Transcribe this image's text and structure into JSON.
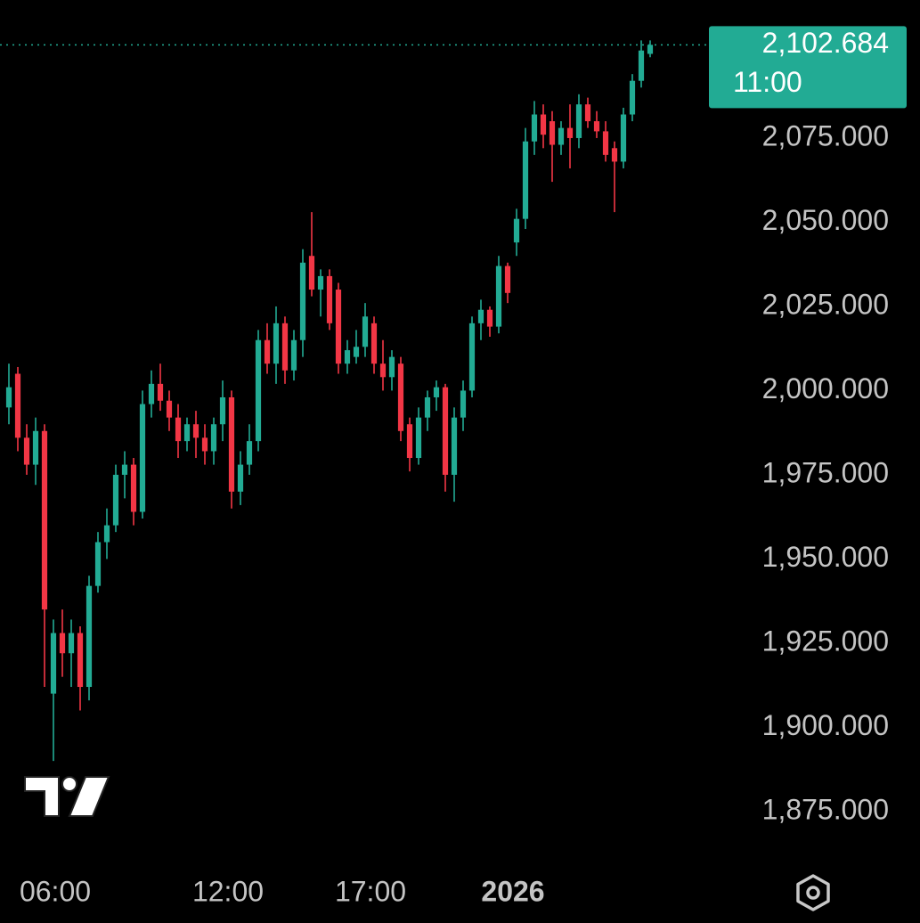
{
  "chart_data": {
    "type": "candlestick",
    "x": [
      1,
      2,
      3,
      4,
      5,
      6,
      7,
      8,
      9,
      10,
      11,
      12,
      13,
      14,
      15,
      16,
      17,
      18,
      19,
      20,
      21,
      22,
      23,
      24,
      25,
      26,
      27,
      28,
      29,
      30,
      31,
      32,
      33,
      34,
      35,
      36,
      37,
      38,
      39,
      40,
      41,
      42,
      43,
      44,
      45,
      46,
      47,
      48,
      49,
      50,
      51,
      52,
      53,
      54,
      55,
      56,
      57,
      58,
      59,
      60,
      61,
      62,
      63,
      64,
      65,
      66,
      67,
      68,
      69,
      70,
      71,
      72,
      73
    ],
    "open": [
      1995,
      2005,
      1986,
      1978,
      1988,
      1910,
      1928,
      1922,
      1928,
      1912,
      1942,
      1955,
      1960,
      1975,
      1978,
      1964,
      1996,
      2002,
      1997,
      1992,
      1985,
      1990,
      1986,
      1982,
      1990,
      1998,
      1970,
      1978,
      1985,
      2015,
      2008,
      2020,
      2006,
      2015,
      2040,
      2030,
      2034,
      2030,
      2008,
      2010,
      2013,
      2020,
      2008,
      2004,
      2008,
      1990,
      1980,
      1992,
      1998,
      2001,
      1975,
      1992,
      2000,
      2020,
      2024,
      2019,
      2037,
      2044,
      2051,
      2074,
      2082,
      2080,
      2073,
      2078,
      2075,
      2085,
      2080,
      2077,
      2072,
      2068,
      2082,
      2092,
      2100
    ],
    "high": [
      2008,
      2007,
      1990,
      1992,
      1990,
      1932,
      1935,
      1932,
      1930,
      1945,
      1958,
      1965,
      1978,
      1982,
      1980,
      2000,
      2006,
      2008,
      2000,
      1996,
      1992,
      1994,
      1990,
      1992,
      2003,
      2000,
      1982,
      1990,
      2018,
      2020,
      2025,
      2022,
      2018,
      2042,
      2053,
      2036,
      2036,
      2032,
      2015,
      2018,
      2026,
      2022,
      2015,
      2012,
      2010,
      1992,
      1995,
      2000,
      2003,
      2002,
      1995,
      2003,
      2022,
      2027,
      2025,
      2040,
      2038,
      2054,
      2078,
      2086,
      2085,
      2083,
      2080,
      2085,
      2088,
      2087,
      2083,
      2080,
      2074,
      2084,
      2094,
      2104,
      2104
    ],
    "low": [
      1990,
      1982,
      1975,
      1972,
      1912,
      1890,
      1915,
      1912,
      1905,
      1908,
      1940,
      1950,
      1958,
      1968,
      1960,
      1962,
      1992,
      1994,
      1988,
      1980,
      1982,
      1980,
      1978,
      1978,
      1985,
      1965,
      1966,
      1975,
      1982,
      2005,
      2002,
      2002,
      2003,
      2010,
      2028,
      2022,
      2018,
      2005,
      2005,
      2008,
      2010,
      2005,
      2000,
      2000,
      1985,
      1976,
      1978,
      1988,
      1994,
      1970,
      1967,
      1988,
      1998,
      2015,
      2016,
      2017,
      2026,
      2040,
      2048,
      2070,
      2072,
      2062,
      2070,
      2066,
      2072,
      2078,
      2075,
      2068,
      2053,
      2066,
      2080,
      2090,
      2099
    ],
    "close": [
      2001,
      1986,
      1978,
      1988,
      1935,
      1928,
      1922,
      1928,
      1912,
      1942,
      1955,
      1960,
      1975,
      1978,
      1964,
      1996,
      2002,
      1997,
      1992,
      1985,
      1990,
      1986,
      1982,
      1990,
      1998,
      1970,
      1978,
      1985,
      2015,
      2008,
      2020,
      2006,
      2015,
      2038,
      2030,
      2034,
      2020,
      2008,
      2012,
      2013,
      2022,
      2008,
      2004,
      2010,
      1988,
      1980,
      1992,
      1998,
      2001,
      1975,
      1992,
      2000,
      2020,
      2024,
      2019,
      2037,
      2029,
      2051,
      2074,
      2082,
      2076,
      2073,
      2078,
      2075,
      2085,
      2080,
      2077,
      2070,
      2068,
      2082,
      2092,
      2101,
      2102.684
    ],
    "up_color": "#22ab94",
    "down_color": "#f23645",
    "xlim": [
      0,
      79
    ],
    "ylim": [
      1862,
      2116
    ],
    "xticks": [
      {
        "value": 6.2,
        "label": "06:00"
      },
      {
        "value": 25.6,
        "label": "12:00"
      },
      {
        "value": 41.6,
        "label": "17:00"
      },
      {
        "value": 57.6,
        "label": "2026"
      }
    ],
    "yticks": [
      {
        "value": 1875,
        "label": "1,875.000"
      },
      {
        "value": 1900,
        "label": "1,900.000"
      },
      {
        "value": 1925,
        "label": "1,925.000"
      },
      {
        "value": 1950,
        "label": "1,950.000"
      },
      {
        "value": 1975,
        "label": "1,975.000"
      },
      {
        "value": 2000,
        "label": "2,000.000"
      },
      {
        "value": 2025,
        "label": "2,025.000"
      },
      {
        "value": 2050,
        "label": "2,050.000"
      },
      {
        "value": 2075,
        "label": "2,075.000"
      }
    ],
    "last_price": {
      "value": 2102.684,
      "label": "2,102.684"
    },
    "countdown": "11:00"
  }
}
